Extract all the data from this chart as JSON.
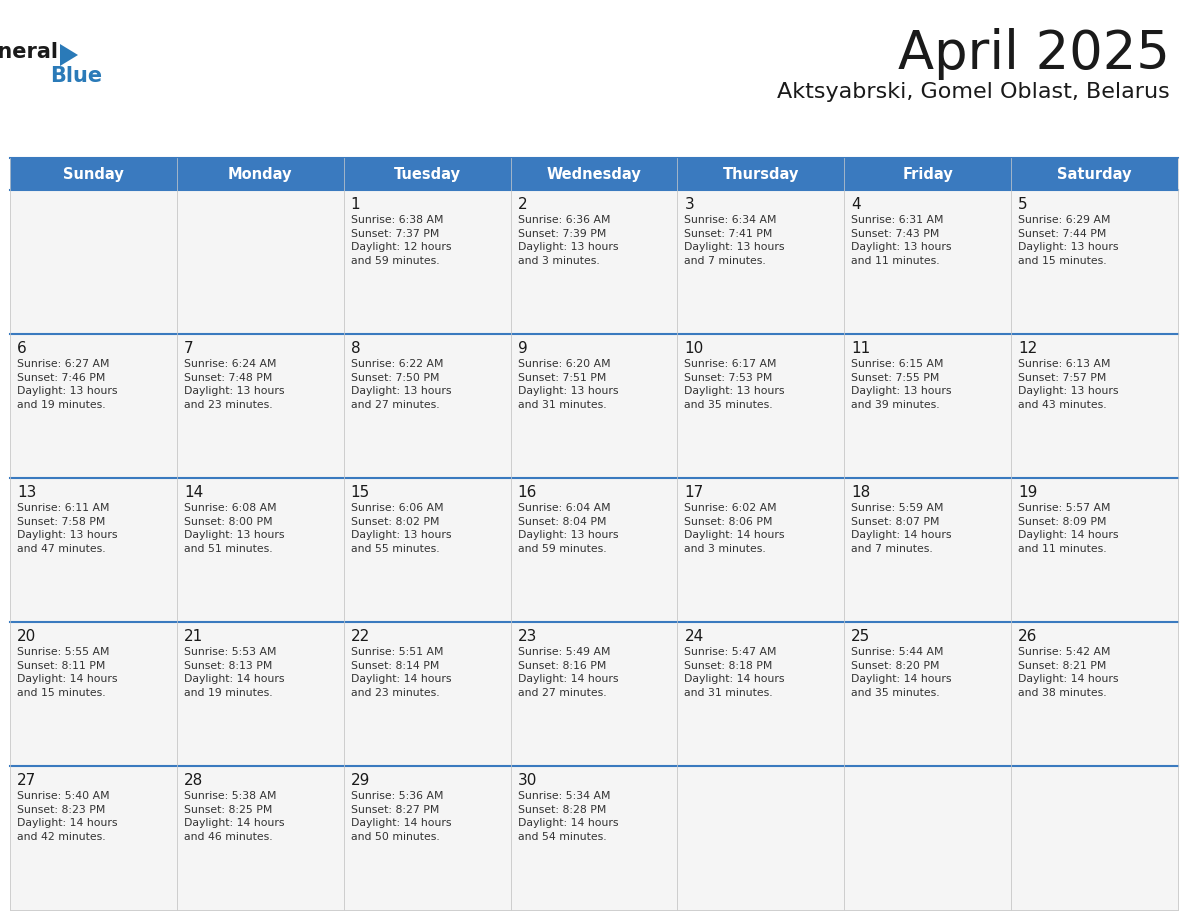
{
  "title": "April 2025",
  "subtitle": "Aktsyabrski, Gomel Oblast, Belarus",
  "header_bg": "#3a7abf",
  "header_text": "#ffffff",
  "cell_bg": "#f5f5f5",
  "border_color": "#3a7abf",
  "cell_border_color": "#cccccc",
  "days_of_week": [
    "Sunday",
    "Monday",
    "Tuesday",
    "Wednesday",
    "Thursday",
    "Friday",
    "Saturday"
  ],
  "title_color": "#1a1a1a",
  "subtitle_color": "#1a1a1a",
  "cell_text_color": "#333333",
  "day_num_color": "#1a1a1a",
  "logo_black": "#1a1a1a",
  "logo_blue": "#2a7ab8",
  "triangle_color": "#2a7ab8",
  "calendar": [
    [
      {
        "day": "",
        "info": ""
      },
      {
        "day": "",
        "info": ""
      },
      {
        "day": "1",
        "info": "Sunrise: 6:38 AM\nSunset: 7:37 PM\nDaylight: 12 hours\nand 59 minutes."
      },
      {
        "day": "2",
        "info": "Sunrise: 6:36 AM\nSunset: 7:39 PM\nDaylight: 13 hours\nand 3 minutes."
      },
      {
        "day": "3",
        "info": "Sunrise: 6:34 AM\nSunset: 7:41 PM\nDaylight: 13 hours\nand 7 minutes."
      },
      {
        "day": "4",
        "info": "Sunrise: 6:31 AM\nSunset: 7:43 PM\nDaylight: 13 hours\nand 11 minutes."
      },
      {
        "day": "5",
        "info": "Sunrise: 6:29 AM\nSunset: 7:44 PM\nDaylight: 13 hours\nand 15 minutes."
      }
    ],
    [
      {
        "day": "6",
        "info": "Sunrise: 6:27 AM\nSunset: 7:46 PM\nDaylight: 13 hours\nand 19 minutes."
      },
      {
        "day": "7",
        "info": "Sunrise: 6:24 AM\nSunset: 7:48 PM\nDaylight: 13 hours\nand 23 minutes."
      },
      {
        "day": "8",
        "info": "Sunrise: 6:22 AM\nSunset: 7:50 PM\nDaylight: 13 hours\nand 27 minutes."
      },
      {
        "day": "9",
        "info": "Sunrise: 6:20 AM\nSunset: 7:51 PM\nDaylight: 13 hours\nand 31 minutes."
      },
      {
        "day": "10",
        "info": "Sunrise: 6:17 AM\nSunset: 7:53 PM\nDaylight: 13 hours\nand 35 minutes."
      },
      {
        "day": "11",
        "info": "Sunrise: 6:15 AM\nSunset: 7:55 PM\nDaylight: 13 hours\nand 39 minutes."
      },
      {
        "day": "12",
        "info": "Sunrise: 6:13 AM\nSunset: 7:57 PM\nDaylight: 13 hours\nand 43 minutes."
      }
    ],
    [
      {
        "day": "13",
        "info": "Sunrise: 6:11 AM\nSunset: 7:58 PM\nDaylight: 13 hours\nand 47 minutes."
      },
      {
        "day": "14",
        "info": "Sunrise: 6:08 AM\nSunset: 8:00 PM\nDaylight: 13 hours\nand 51 minutes."
      },
      {
        "day": "15",
        "info": "Sunrise: 6:06 AM\nSunset: 8:02 PM\nDaylight: 13 hours\nand 55 minutes."
      },
      {
        "day": "16",
        "info": "Sunrise: 6:04 AM\nSunset: 8:04 PM\nDaylight: 13 hours\nand 59 minutes."
      },
      {
        "day": "17",
        "info": "Sunrise: 6:02 AM\nSunset: 8:06 PM\nDaylight: 14 hours\nand 3 minutes."
      },
      {
        "day": "18",
        "info": "Sunrise: 5:59 AM\nSunset: 8:07 PM\nDaylight: 14 hours\nand 7 minutes."
      },
      {
        "day": "19",
        "info": "Sunrise: 5:57 AM\nSunset: 8:09 PM\nDaylight: 14 hours\nand 11 minutes."
      }
    ],
    [
      {
        "day": "20",
        "info": "Sunrise: 5:55 AM\nSunset: 8:11 PM\nDaylight: 14 hours\nand 15 minutes."
      },
      {
        "day": "21",
        "info": "Sunrise: 5:53 AM\nSunset: 8:13 PM\nDaylight: 14 hours\nand 19 minutes."
      },
      {
        "day": "22",
        "info": "Sunrise: 5:51 AM\nSunset: 8:14 PM\nDaylight: 14 hours\nand 23 minutes."
      },
      {
        "day": "23",
        "info": "Sunrise: 5:49 AM\nSunset: 8:16 PM\nDaylight: 14 hours\nand 27 minutes."
      },
      {
        "day": "24",
        "info": "Sunrise: 5:47 AM\nSunset: 8:18 PM\nDaylight: 14 hours\nand 31 minutes."
      },
      {
        "day": "25",
        "info": "Sunrise: 5:44 AM\nSunset: 8:20 PM\nDaylight: 14 hours\nand 35 minutes."
      },
      {
        "day": "26",
        "info": "Sunrise: 5:42 AM\nSunset: 8:21 PM\nDaylight: 14 hours\nand 38 minutes."
      }
    ],
    [
      {
        "day": "27",
        "info": "Sunrise: 5:40 AM\nSunset: 8:23 PM\nDaylight: 14 hours\nand 42 minutes."
      },
      {
        "day": "28",
        "info": "Sunrise: 5:38 AM\nSunset: 8:25 PM\nDaylight: 14 hours\nand 46 minutes."
      },
      {
        "day": "29",
        "info": "Sunrise: 5:36 AM\nSunset: 8:27 PM\nDaylight: 14 hours\nand 50 minutes."
      },
      {
        "day": "30",
        "info": "Sunrise: 5:34 AM\nSunset: 8:28 PM\nDaylight: 14 hours\nand 54 minutes."
      },
      {
        "day": "",
        "info": ""
      },
      {
        "day": "",
        "info": ""
      },
      {
        "day": "",
        "info": ""
      }
    ]
  ]
}
